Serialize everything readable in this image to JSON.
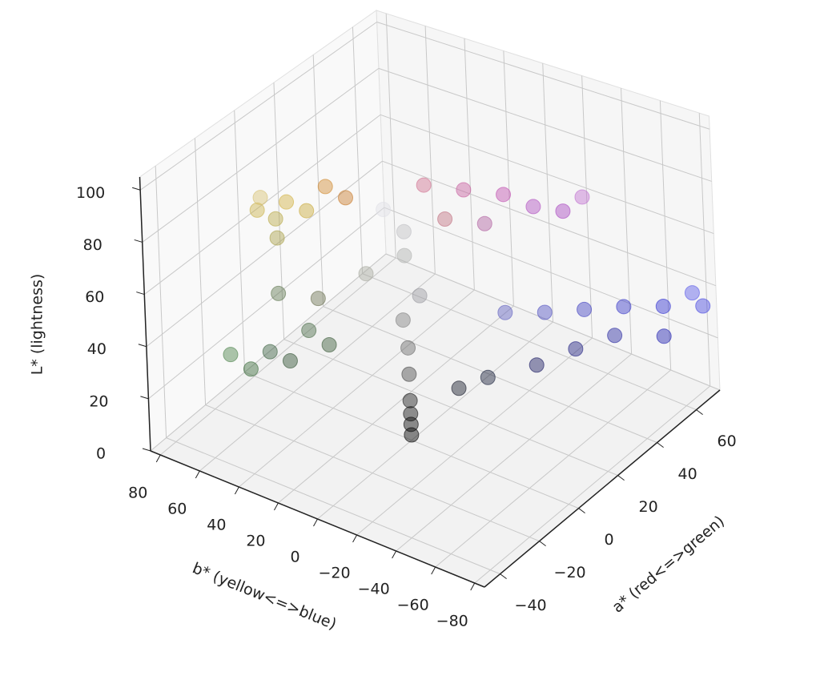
{
  "chart_data": {
    "type": "scatter3d",
    "xlabel": "a* (red<=>green)",
    "ylabel": "b* (yellow<=>blue)",
    "zlabel": "L* (lightness)",
    "xlim": [
      -48,
      72
    ],
    "ylim": [
      -85,
      85
    ],
    "zlim": [
      0,
      105
    ],
    "xticks": [
      {
        "value": -40,
        "label": "−40"
      },
      {
        "value": -20,
        "label": "−20"
      },
      0,
      20,
      40,
      60
    ],
    "yticks": [
      80,
      60,
      40,
      20,
      0,
      {
        "value": -20,
        "label": "−20"
      },
      {
        "value": -40,
        "label": "−40"
      },
      {
        "value": -60,
        "label": "−60"
      },
      {
        "value": -80,
        "label": "−80"
      }
    ],
    "zticks": [
      0,
      20,
      40,
      60,
      80,
      100
    ],
    "grid": true,
    "x": [
      -5,
      0,
      5,
      10,
      15,
      -8,
      2,
      -10,
      0,
      5,
      0,
      -5,
      2,
      0,
      0,
      0,
      30,
      40,
      50,
      55,
      60,
      45,
      35,
      65,
      20,
      30,
      40,
      50,
      60,
      70,
      45,
      35,
      25,
      55,
      15,
      10,
      65,
      -30,
      -25,
      -20,
      -35,
      -15,
      -40,
      -20,
      -10,
      0,
      0,
      0,
      0
    ],
    "y": [
      70,
      60,
      55,
      50,
      45,
      65,
      68,
      55,
      10,
      5,
      0,
      15,
      -5,
      2,
      0,
      0,
      20,
      10,
      0,
      -10,
      -20,
      5,
      15,
      -25,
      -30,
      -40,
      -50,
      -60,
      -70,
      -80,
      -60,
      -50,
      -40,
      -75,
      -25,
      -15,
      -80,
      40,
      35,
      30,
      45,
      25,
      50,
      45,
      35,
      0,
      0,
      0,
      0
    ],
    "z": [
      72,
      75,
      70,
      78,
      72,
      80,
      65,
      68,
      85,
      75,
      70,
      62,
      55,
      45,
      35,
      25,
      75,
      70,
      65,
      60,
      58,
      55,
      60,
      62,
      45,
      42,
      40,
      38,
      35,
      32,
      30,
      28,
      25,
      28,
      22,
      18,
      40,
      40,
      35,
      45,
      35,
      38,
      42,
      55,
      50,
      2,
      6,
      10,
      15
    ],
    "colors": [
      "#c9b24a",
      "#d0b040",
      "#c8a838",
      "#d08a30",
      "#c87a2a",
      "#d6c070",
      "#b8a848",
      "#a8a048",
      "#e0e0e6",
      "#c0c0c4",
      "#b0b2b0",
      "#a8aaa0",
      "#9a9aa0",
      "#808080",
      "#6a6a6a",
      "#4a4a4a",
      "#d07090",
      "#c860a0",
      "#c050b0",
      "#b050c0",
      "#a848c0",
      "#b060a0",
      "#c07080",
      "#c070d0",
      "#6060c0",
      "#5050c0",
      "#4040c0",
      "#3838c8",
      "#3030d0",
      "#4848e0",
      "#2828a0",
      "#202080",
      "#181860",
      "#2020b0",
      "#18203a",
      "#141828",
      "#5a5ae8",
      "#3a6040",
      "#2e5030",
      "#4a6a48",
      "#3a6a3a",
      "#3a5a38",
      "#4a8048",
      "#607850",
      "#6a7050",
      "#000000",
      "#080808",
      "#101010",
      "#1a1a1a"
    ]
  }
}
